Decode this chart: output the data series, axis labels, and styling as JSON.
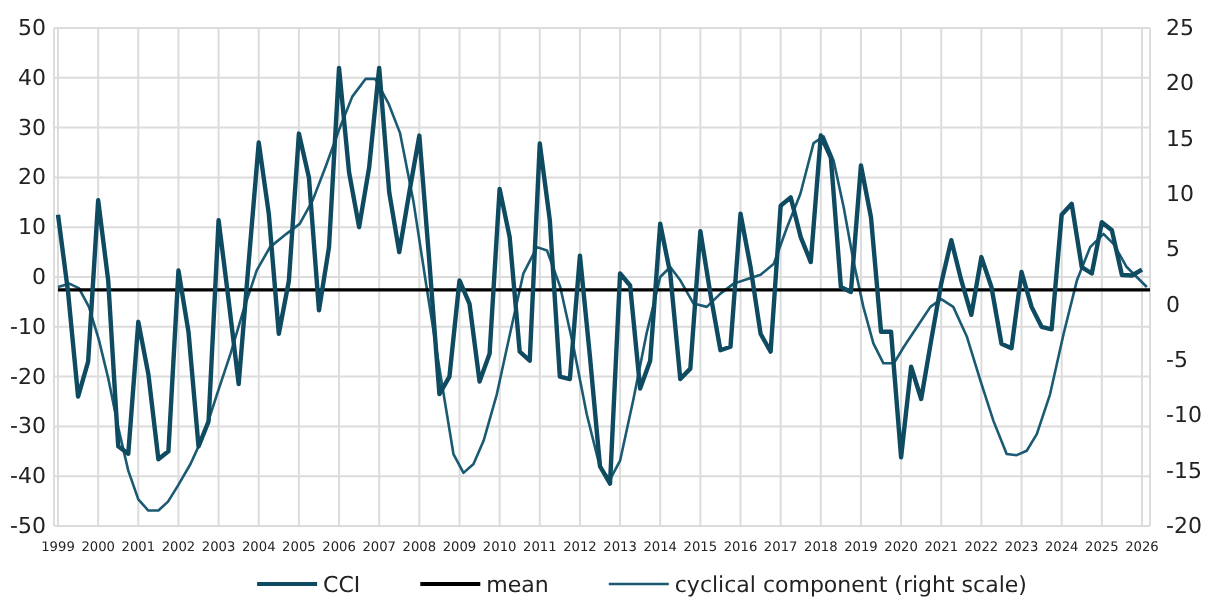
{
  "chart_data": {
    "type": "line",
    "x": [
      1999,
      1999.25,
      1999.5,
      1999.75,
      2000,
      2000.25,
      2000.5,
      2000.75,
      2001,
      2001.25,
      2001.5,
      2001.75,
      2002,
      2002.25,
      2002.5,
      2002.75,
      2003,
      2003.25,
      2003.5,
      2003.75,
      2004,
      2004.25,
      2004.5,
      2004.75,
      2005,
      2005.25,
      2005.5,
      2005.75,
      2006,
      2006.25,
      2006.5,
      2006.75,
      2007,
      2007.25,
      2007.5,
      2007.75,
      2008,
      2008.25,
      2008.5,
      2008.75,
      2009,
      2009.25,
      2009.5,
      2009.75,
      2010,
      2010.25,
      2010.5,
      2010.75,
      2011,
      2011.25,
      2011.5,
      2011.75,
      2012,
      2012.25,
      2012.5,
      2012.75,
      2013,
      2013.25,
      2013.5,
      2013.75,
      2014,
      2014.25,
      2014.5,
      2014.75,
      2015,
      2015.25,
      2015.5,
      2015.75,
      2016,
      2016.25,
      2016.5,
      2016.75,
      2017,
      2017.25,
      2017.5,
      2017.75,
      2018,
      2018.25,
      2018.5,
      2018.75,
      2019,
      2019.25,
      2019.5,
      2019.75,
      2020,
      2020.25,
      2020.5,
      2020.75,
      2021,
      2021.25,
      2021.5,
      2021.75,
      2022,
      2022.25,
      2022.5,
      2022.75,
      2023,
      2023.25,
      2023.5,
      2023.75,
      2024,
      2024.25,
      2024.5,
      2024.75,
      2025,
      2025.25,
      2025.5,
      2025.75,
      2026
    ],
    "series": [
      {
        "name": "CCI",
        "color": "#0e4a60",
        "values": [
          12.5,
          -3,
          -24,
          -17,
          15.4,
          -0.7,
          -34,
          -35.5,
          -9,
          -19.5,
          -36.6,
          -35,
          1.3,
          -11,
          -34,
          -29,
          11.4,
          -4.7,
          -21.5,
          3,
          27,
          12.7,
          -11.4,
          -0.8,
          28.8,
          20,
          -6.7,
          6,
          42,
          21,
          10,
          22,
          42,
          17,
          5,
          17,
          28.4,
          3,
          -23.5,
          -20,
          -0.7,
          -5.4,
          -21,
          -15.4,
          17.7,
          8,
          -15,
          -16.8,
          26.8,
          11.4,
          -20,
          -20.5,
          4.3,
          -16,
          -38,
          -41.5,
          0.7,
          -1.7,
          -22.4,
          -16.8,
          10.7,
          0.7,
          -20.5,
          -18.4,
          9.2,
          -3.4,
          -14.7,
          -14,
          12.7,
          2,
          -11.4,
          -15,
          14.3,
          16,
          8,
          3,
          28.4,
          24,
          -2,
          -3,
          22.4,
          12,
          -11,
          -11,
          -36.2,
          -18,
          -24.5,
          -12.7,
          -1.3,
          7.4,
          -0.7,
          -7.6,
          4,
          -2,
          -13.4,
          -14.3,
          1,
          -6,
          -10,
          -10.5,
          12.5,
          14.7,
          2,
          0.7,
          11,
          9.4,
          0.4,
          0.3,
          1.5
        ]
      },
      {
        "name": "mean",
        "color": "#000000",
        "x": [
          1999,
          2026.2
        ],
        "values": [
          -2.6,
          -2.6
        ]
      },
      {
        "name": "cyclical component (right scale)",
        "color": "#1a5a72",
        "axis": "y2",
        "x": [
          1999,
          1999.28,
          1999.52,
          1999.77,
          2000.02,
          2000.26,
          2000.5,
          2000.75,
          2001,
          2001.25,
          2001.5,
          2001.74,
          2001.98,
          2002.3,
          2002.64,
          2002.97,
          2003.3,
          2003.62,
          2003.95,
          2004.28,
          2004.69,
          2005.02,
          2005.34,
          2005.67,
          2006,
          2006.33,
          2006.66,
          2006.9,
          2007.23,
          2007.52,
          2007.85,
          2008.18,
          2008.52,
          2008.85,
          2009.1,
          2009.35,
          2009.6,
          2009.93,
          2010.26,
          2010.59,
          2010.93,
          2011.18,
          2011.51,
          2011.84,
          2012.17,
          2012.5,
          2012.75,
          2013,
          2013.33,
          2013.66,
          2014,
          2014.25,
          2014.5,
          2014.83,
          2015.16,
          2015.5,
          2015.83,
          2016.16,
          2016.5,
          2016.83,
          2017.16,
          2017.49,
          2017.82,
          2018.07,
          2018.32,
          2018.57,
          2018.81,
          2019.06,
          2019.31,
          2019.56,
          2019.82,
          2020.07,
          2020.4,
          2020.73,
          2021,
          2021.3,
          2021.64,
          2021.97,
          2022.3,
          2022.63,
          2022.88,
          2023.13,
          2023.38,
          2023.71,
          2024.05,
          2024.38,
          2024.71,
          2025.04,
          2025.29,
          2025.62,
          2025.87,
          2026.12
        ],
        "values": [
          1.6,
          1.9,
          1.5,
          -0.2,
          -3.2,
          -6.8,
          -11.1,
          -15,
          -17.6,
          -18.6,
          -18.6,
          -17.8,
          -16.4,
          -14.4,
          -11.7,
          -8,
          -4.4,
          -0.5,
          3.1,
          5.2,
          6.4,
          7.3,
          9.4,
          12.5,
          15.8,
          18.8,
          20.4,
          20.4,
          18.2,
          15.5,
          9.4,
          1.6,
          -6.2,
          -13.5,
          -15.2,
          -14.4,
          -12.3,
          -8.1,
          -2.6,
          2.8,
          5.2,
          4.9,
          1.6,
          -3.8,
          -9.9,
          -14.7,
          -15.8,
          -14.1,
          -8.6,
          -2.6,
          2.5,
          3.4,
          2.2,
          0.1,
          -0.2,
          1,
          1.9,
          2.3,
          2.7,
          3.7,
          7,
          10,
          14.6,
          15.2,
          13,
          8.8,
          4,
          -0.2,
          -3.5,
          -5.3,
          -5.3,
          -3.8,
          -2,
          -0.2,
          0.5,
          -0.2,
          -2.9,
          -6.8,
          -10.5,
          -13.5,
          -13.6,
          -13.2,
          -11.7,
          -8.1,
          -2.6,
          2.2,
          5.2,
          6.4,
          5.5,
          3.4,
          2.5,
          1.6
        ]
      }
    ],
    "xlim": [
      1998.9,
      2026.2
    ],
    "xticks": [
      1999,
      2000,
      2001,
      2002,
      2003,
      2004,
      2005,
      2006,
      2007,
      2008,
      2009,
      2010,
      2011,
      2012,
      2013,
      2014,
      2015,
      2016,
      2017,
      2018,
      2019,
      2020,
      2021,
      2022,
      2023,
      2024,
      2025,
      2026
    ],
    "ylim": [
      -50,
      50
    ],
    "yticks": [
      -50,
      -40,
      -30,
      -20,
      -10,
      0,
      10,
      20,
      30,
      40,
      50
    ],
    "y2lim": [
      -20,
      25
    ],
    "y2ticks": [
      -20,
      -15,
      -10,
      -5,
      0,
      5,
      10,
      15,
      20,
      25
    ],
    "grid": true,
    "legend": "bottom"
  }
}
